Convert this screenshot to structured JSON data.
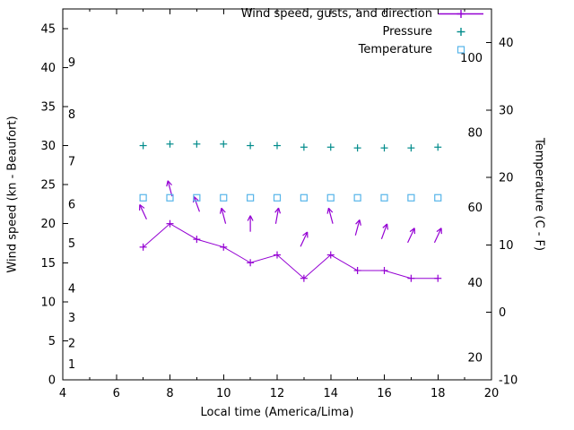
{
  "chart_data": {
    "type": "line",
    "title": "",
    "background_color": "#ffffff",
    "legend_position": "top-right-inside",
    "grid": false,
    "legend": [
      {
        "label": "Wind speed, gusts, and direction",
        "marker": "line-with-plus",
        "color": "#9400d3"
      },
      {
        "label": "Pressure",
        "marker": "plus",
        "color": "#008b8b"
      },
      {
        "label": "Temperature",
        "marker": "open-square",
        "color": "#56b4e9"
      }
    ],
    "axes": {
      "x": {
        "label": "Local time (America/Lima)",
        "min": 4,
        "max": 20,
        "major_ticks": [
          4,
          6,
          8,
          10,
          12,
          14,
          16,
          18,
          20
        ],
        "minor_tick_step": 1
      },
      "y_left": {
        "label": "Wind speed (kn - Beaufort)",
        "min": 0,
        "max": 47.5,
        "ticks": [
          0,
          5,
          10,
          15,
          20,
          25,
          30,
          35,
          40,
          45
        ],
        "beaufort_labels": [
          {
            "text": "1",
            "kn": 2.0
          },
          {
            "text": "2",
            "kn": 4.7
          },
          {
            "text": "3",
            "kn": 8.0
          },
          {
            "text": "4",
            "kn": 11.7
          },
          {
            "text": "5",
            "kn": 17.5
          },
          {
            "text": "6",
            "kn": 22.5
          },
          {
            "text": "7",
            "kn": 28.0
          },
          {
            "text": "8",
            "kn": 34.0
          },
          {
            "text": "9",
            "kn": 40.7
          }
        ]
      },
      "y_right": {
        "label": "Temperature (C - F)",
        "min": -10,
        "max": 45,
        "ticks": [
          -10,
          0,
          10,
          20,
          30,
          40
        ],
        "fahrenheit_labels": [
          20,
          40,
          60,
          80,
          100
        ]
      }
    },
    "x": [
      7,
      8,
      9,
      10,
      11,
      12,
      13,
      14,
      15,
      16,
      17,
      18
    ],
    "series": [
      {
        "name": "wind_speed_kn",
        "axis": "left",
        "color": "#9400d3",
        "style": "linespoints-plus",
        "values": [
          17,
          20,
          18,
          17,
          15,
          16,
          13,
          16,
          14,
          14,
          13,
          13
        ]
      },
      {
        "name": "wind_gusts_kn_direction_arrows",
        "axis": "left",
        "color": "#9400d3",
        "style": "direction-arrows",
        "values": [
          21.5,
          24.5,
          22.5,
          21,
          20,
          21,
          18,
          21,
          19.5,
          19,
          18.5,
          18.5
        ],
        "direction_deg_from_up": [
          -25,
          -15,
          -20,
          -15,
          0,
          10,
          25,
          -15,
          15,
          20,
          25,
          25
        ]
      },
      {
        "name": "pressure",
        "axis": "left",
        "color": "#008b8b",
        "style": "points-plus",
        "values": [
          30.0,
          30.2,
          30.2,
          30.2,
          30.0,
          30.0,
          29.8,
          29.8,
          29.7,
          29.7,
          29.7,
          29.8
        ]
      },
      {
        "name": "temperature_c",
        "axis": "right",
        "color": "#56b4e9",
        "style": "points-square",
        "values": [
          17,
          17,
          17,
          17,
          17,
          17,
          17,
          17,
          17,
          17,
          17,
          17
        ]
      }
    ]
  }
}
